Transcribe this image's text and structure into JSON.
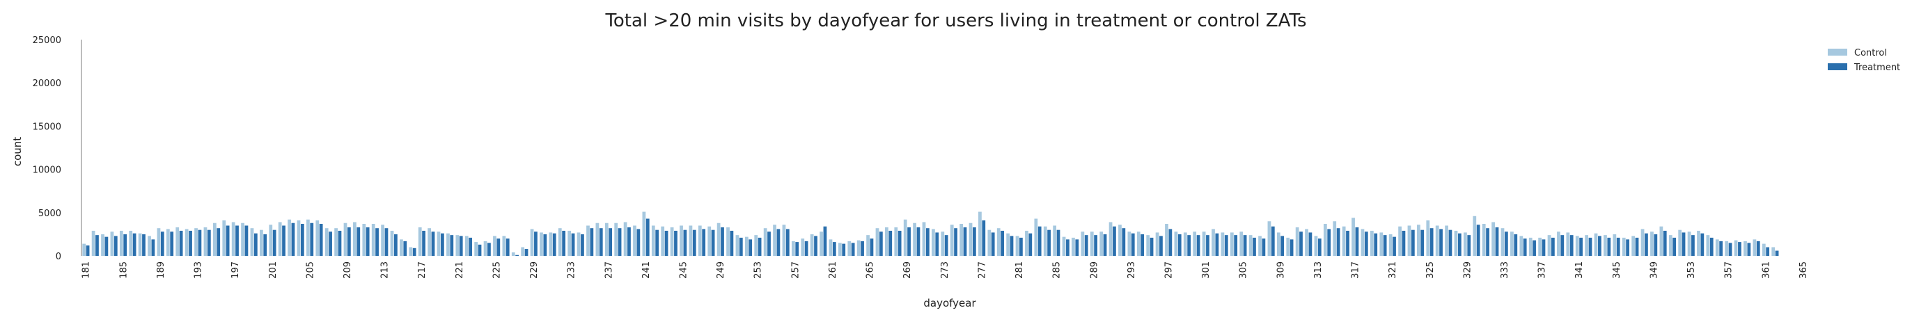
{
  "chart_data": {
    "type": "bar",
    "title": "Total >20 min visits by dayofyear for users living in treatment or control ZATs",
    "xlabel": "dayofyear",
    "ylabel": "count",
    "ylim": [
      0,
      25000
    ],
    "yticks": [
      0,
      5000,
      10000,
      15000,
      20000,
      25000
    ],
    "grid": false,
    "legend_position": "top-right",
    "colors": {
      "Control": "#a6c8df",
      "Treatment": "#2a6fad"
    },
    "x_start": 181,
    "x_end": 366,
    "tick_step": 4,
    "series": [
      {
        "name": "Control",
        "values": [
          1400,
          2900,
          2500,
          2800,
          2900,
          2900,
          2600,
          2300,
          3200,
          3100,
          3300,
          3100,
          3200,
          3300,
          3800,
          4100,
          3900,
          3800,
          3200,
          3000,
          3600,
          3900,
          4200,
          4100,
          4200,
          4100,
          3200,
          3200,
          3800,
          3900,
          3700,
          3700,
          3600,
          2900,
          1900,
          1000,
          3300,
          3200,
          2800,
          2600,
          2400,
          2300,
          1600,
          1700,
          2300,
          2300,
          400,
          1000,
          3100,
          2700,
          2700,
          3200,
          2900,
          2700,
          3500,
          3800,
          3800,
          3800,
          3900,
          3500,
          5100,
          3500,
          3400,
          3300,
          3500,
          3500,
          3500,
          3400,
          3800,
          3300,
          2400,
          2200,
          2400,
          3200,
          3600,
          3600,
          1700,
          2000,
          2500,
          2800,
          1900,
          1500,
          1700,
          1800,
          2400,
          3200,
          3300,
          3300,
          4200,
          3800,
          3900,
          3100,
          2800,
          3600,
          3700,
          3800,
          5100,
          3000,
          3200,
          2600,
          2300,
          2900,
          4300,
          3400,
          3500,
          2200,
          2100,
          2800,
          2800,
          2800,
          3900,
          3600,
          2800,
          2800,
          2400,
          2700,
          3700,
          2800,
          2700,
          2800,
          2800,
          3100,
          2700,
          2700,
          2800,
          2400,
          2300,
          4000,
          2700,
          2100,
          3300,
          3100,
          2300,
          3700,
          4000,
          3400,
          4400,
          3100,
          2900,
          2700,
          2500,
          3400,
          3500,
          3600,
          4100,
          3500,
          3500,
          2900,
          2700,
          4600,
          3700,
          3900,
          3200,
          2800,
          2300,
          2100,
          2100,
          2400,
          2800,
          2700,
          2300,
          2400,
          2600,
          2400,
          2500,
          2100,
          2300,
          3100,
          2800,
          3400,
          2400,
          3000,
          2800,
          2900,
          2400,
          1900,
          1700,
          1800,
          1700,
          1900,
          1400,
          1000
        ],
        "values_cont": "see above"
      },
      {
        "name": "Treatment",
        "values": [
          1200,
          2400,
          2200,
          2300,
          2500,
          2600,
          2500,
          1900,
          2800,
          2800,
          2900,
          2900,
          3000,
          3000,
          3200,
          3500,
          3500,
          3500,
          2600,
          2500,
          3000,
          3500,
          3800,
          3700,
          3800,
          3700,
          2800,
          2900,
          3300,
          3300,
          3300,
          3200,
          3200,
          2500,
          1700,
          900,
          2900,
          2800,
          2600,
          2400,
          2300,
          2100,
          1300,
          1500,
          2000,
          2000,
          100,
          800,
          2800,
          2500,
          2600,
          2900,
          2600,
          2500,
          3200,
          3200,
          3200,
          3200,
          3300,
          3100,
          4300,
          3000,
          2900,
          2900,
          3000,
          3000,
          3100,
          3000,
          3300,
          2900,
          2100,
          1900,
          2100,
          2800,
          3100,
          3100,
          1600,
          1700,
          2300,
          3400,
          1600,
          1400,
          1500,
          1700,
          2000,
          2800,
          2900,
          2900,
          3300,
          3300,
          3200,
          2700,
          2400,
          3200,
          3300,
          3300,
          4100,
          2700,
          2900,
          2300,
          2100,
          2600,
          3400,
          3000,
          3000,
          1900,
          1900,
          2400,
          2400,
          2500,
          3400,
          3200,
          2600,
          2500,
          2100,
          2300,
          3100,
          2500,
          2400,
          2400,
          2400,
          2600,
          2400,
          2400,
          2400,
          2100,
          2000,
          3400,
          2300,
          1900,
          2800,
          2700,
          2000,
          3100,
          3200,
          2900,
          3300,
          2800,
          2600,
          2400,
          2200,
          2900,
          3000,
          3000,
          3200,
          3100,
          3000,
          2600,
          2400,
          3600,
          3200,
          3300,
          2800,
          2500,
          2000,
          1800,
          1900,
          2100,
          2400,
          2400,
          2100,
          2100,
          2300,
          2100,
          2100,
          1900,
          2100,
          2600,
          2500,
          2900,
          2100,
          2700,
          2400,
          2600,
          2100,
          1700,
          1500,
          1600,
          1500,
          1700,
          1000,
          600
        ]
      }
    ]
  }
}
